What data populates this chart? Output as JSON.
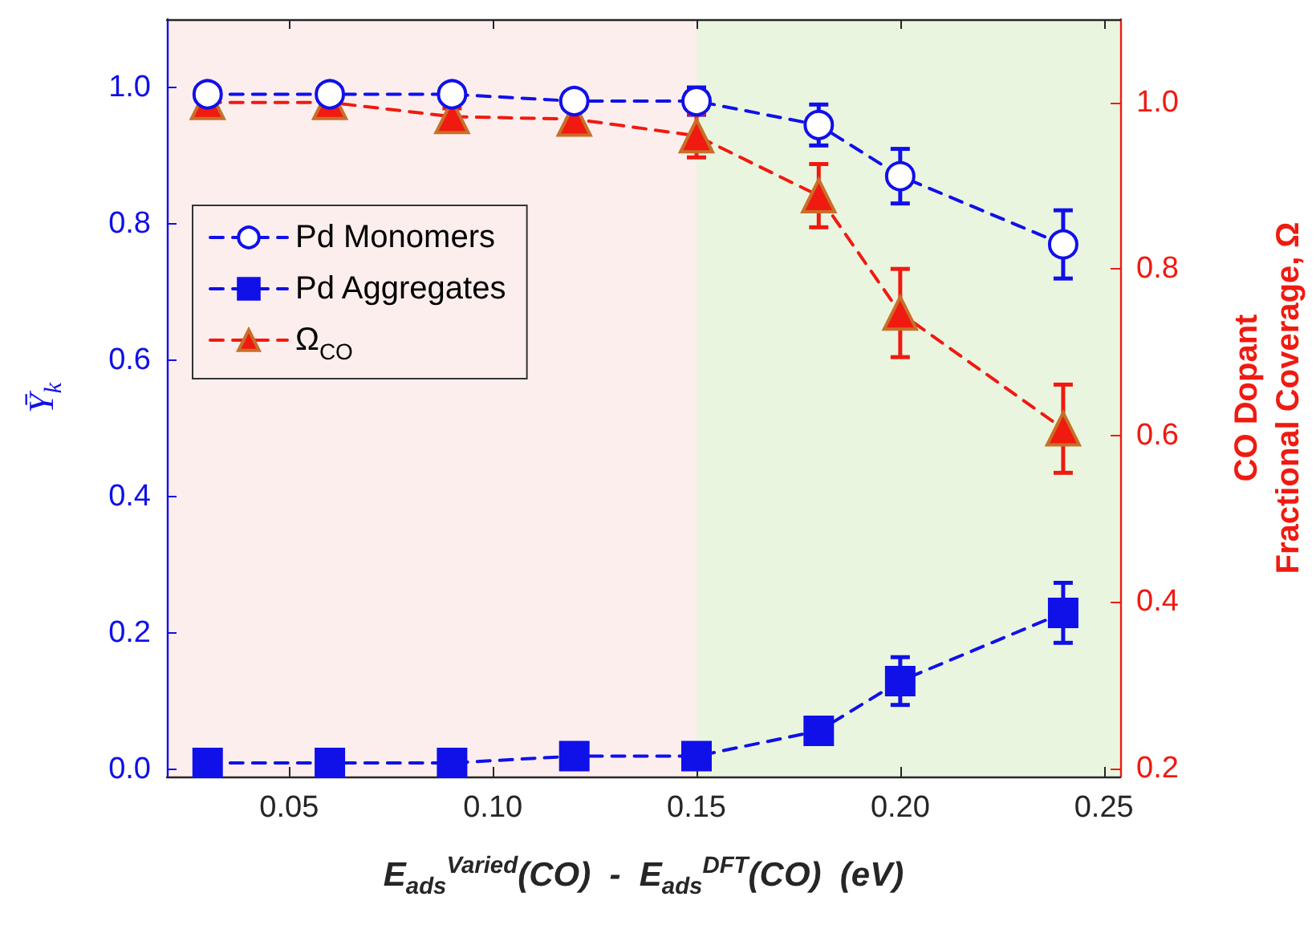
{
  "chart_data": {
    "type": "line",
    "xlabel": "E$_{ads}$$^{Varied}$(CO)  -  E$_{ads}$$^{DFT}$(CO)  (eV)",
    "ylabel": "Ȳ$_{k}$",
    "y2label": "CO Dopant\nFractional Coverage, Ω",
    "x": [
      0.03,
      0.06,
      0.09,
      0.12,
      0.15,
      0.18,
      0.2,
      0.24
    ],
    "series": [
      {
        "name": "Pd Monomers",
        "color": "#1010e8",
        "marker": "circle",
        "values": [
          0.99,
          0.99,
          0.99,
          0.98,
          0.98,
          0.945,
          0.87,
          0.77
        ],
        "errors": [
          null,
          null,
          null,
          null,
          0.02,
          0.03,
          0.04,
          0.05
        ]
      },
      {
        "name": "Pd Aggregates",
        "color": "#1010e8",
        "marker": "square",
        "values": [
          0.01,
          0.01,
          0.01,
          0.02,
          0.02,
          0.057,
          0.13,
          0.23
        ],
        "errors": [
          null,
          null,
          null,
          null,
          null,
          0.01,
          0.035,
          0.044
        ]
      },
      {
        "name": "Ω$_{CO}$",
        "color": "#f01a10",
        "marker": "triangle",
        "axis": "y2",
        "values": [
          1.0,
          1.0,
          0.983,
          0.98,
          0.96,
          0.888,
          0.747,
          0.608
        ],
        "errors": [
          null,
          null,
          0.01,
          0.012,
          0.026,
          0.038,
          0.053,
          0.053
        ]
      }
    ],
    "xlim": [
      0.02,
      0.254
    ],
    "xticks": [
      {
        "value": 0.05,
        "label": "0.05"
      },
      {
        "value": 0.1,
        "label": "0.10"
      },
      {
        "value": 0.15,
        "label": "0.15"
      },
      {
        "value": 0.2,
        "label": "0.20"
      },
      {
        "value": 0.25,
        "label": "0.25"
      }
    ],
    "ylim": [
      -0.01,
      1.1
    ],
    "yticks": [
      {
        "value": 0,
        "label": "0.0"
      },
      {
        "value": 0.2,
        "label": "0.2"
      },
      {
        "value": 0.4,
        "label": "0.4"
      },
      {
        "value": 0.6,
        "label": "0.6"
      },
      {
        "value": 0.8,
        "label": "0.8"
      },
      {
        "value": 1,
        "label": "1.0"
      }
    ],
    "y2lim": [
      0.19,
      1.1
    ],
    "y2ticks": [
      {
        "value": 0.2,
        "label": "0.2"
      },
      {
        "value": 0.4,
        "label": "0.4"
      },
      {
        "value": 0.6,
        "label": "0.6"
      },
      {
        "value": 0.8,
        "label": "0.8"
      },
      {
        "value": 1,
        "label": "1.0"
      }
    ],
    "bands": [
      {
        "axis": "x",
        "from": 0.02,
        "to": 0.15,
        "color": "#fdeeee"
      },
      {
        "axis": "x",
        "from": 0.15,
        "to": 0.254,
        "color": "#eaf5e0"
      }
    ],
    "legend": "left",
    "line_style": "dashed"
  }
}
